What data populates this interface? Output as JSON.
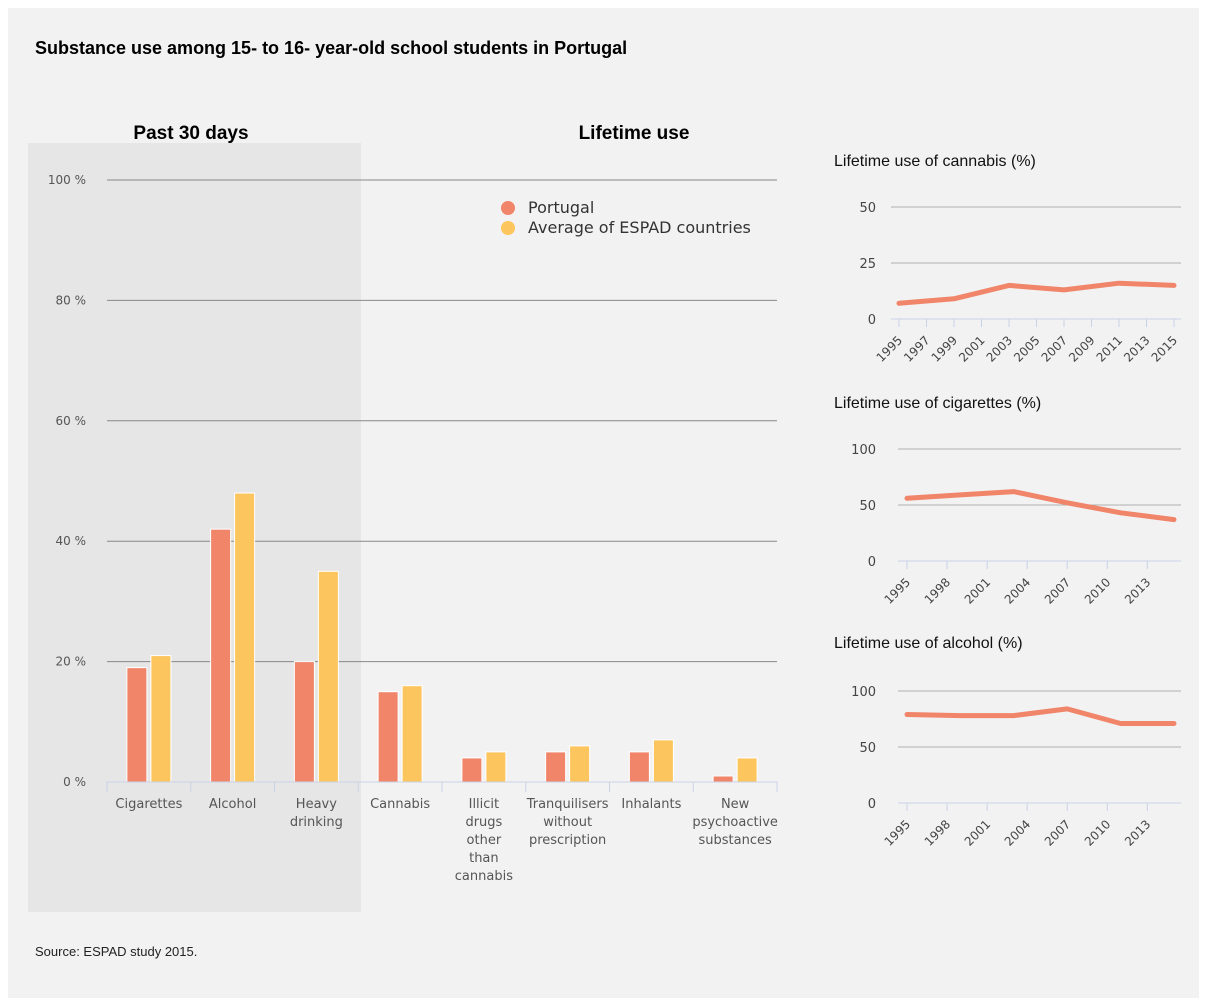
{
  "title": "Substance use among 15- to 16- year-old school students in Portugal",
  "source": "Source: ESPAD study 2015.",
  "colors": {
    "portugal": "#f0856a",
    "espad": "#fdc55d",
    "line": "#f0856a",
    "shade": "#e6e6e6",
    "grid": "#888888",
    "axis": "#c8d2e6"
  },
  "chart_data": [
    {
      "type": "bar",
      "section_labels": [
        "Past 30 days",
        "Lifetime use"
      ],
      "categories": [
        [
          "Cigarettes"
        ],
        [
          "Alcohol"
        ],
        [
          "Heavy",
          "drinking"
        ],
        [
          "Cannabis"
        ],
        [
          "Illicit",
          "drugs",
          "other",
          "than",
          "cannabis"
        ],
        [
          "Tranquilisers",
          "without",
          "prescription"
        ],
        [
          "Inhalants"
        ],
        [
          "New",
          "psychoactive",
          "substances"
        ]
      ],
      "series": [
        {
          "name": "Portugal",
          "values": [
            19,
            42,
            20,
            15,
            4,
            5,
            5,
            1
          ]
        },
        {
          "name": "Average of ESPAD countries",
          "values": [
            21,
            48,
            35,
            16,
            5,
            6,
            7,
            4
          ]
        }
      ],
      "ylim": [
        0,
        100
      ],
      "yticks": [
        0,
        20,
        40,
        60,
        80,
        100
      ],
      "ytick_labels": [
        "0 %",
        "20 %",
        "40 %",
        "60 %",
        "80 %",
        "100 %"
      ],
      "grid": true,
      "legend": "top-right"
    },
    {
      "type": "line",
      "title": "Lifetime use of cannabis (%)",
      "x": [
        1995,
        1999,
        2003,
        2007,
        2011,
        2015
      ],
      "series": [
        {
          "values": [
            7,
            9,
            15,
            13,
            16,
            15
          ]
        }
      ],
      "xtick_labels": [
        "1995",
        "1997",
        "1999",
        "2001",
        "2003",
        "2005",
        "2007",
        "2009",
        "2011",
        "2013",
        "2015"
      ],
      "xlim": [
        1995,
        2015
      ],
      "ylim": [
        0,
        50
      ],
      "yticks": [
        0,
        25,
        50
      ],
      "grid": true
    },
    {
      "type": "line",
      "title": "Lifetime use of cigarettes (%)",
      "x": [
        1995,
        1999,
        2003,
        2007,
        2011,
        2015
      ],
      "series": [
        {
          "values": [
            56,
            59,
            62,
            52,
            43,
            37
          ]
        }
      ],
      "xtick_labels": [
        "1995",
        "1998",
        "2001",
        "2004",
        "2007",
        "2010",
        "2013"
      ],
      "xlim": [
        1995,
        2015
      ],
      "ylim": [
        0,
        100
      ],
      "yticks": [
        0,
        50,
        100
      ],
      "grid": true
    },
    {
      "type": "line",
      "title": "Lifetime use of alcohol (%)",
      "x": [
        1995,
        1999,
        2003,
        2007,
        2011,
        2015
      ],
      "series": [
        {
          "values": [
            79,
            78,
            78,
            84,
            71,
            71
          ]
        }
      ],
      "xtick_labels": [
        "1995",
        "1998",
        "2001",
        "2004",
        "2007",
        "2010",
        "2013"
      ],
      "xlim": [
        1995,
        2015
      ],
      "ylim": [
        0,
        100
      ],
      "yticks": [
        0,
        50,
        100
      ],
      "grid": true
    }
  ]
}
